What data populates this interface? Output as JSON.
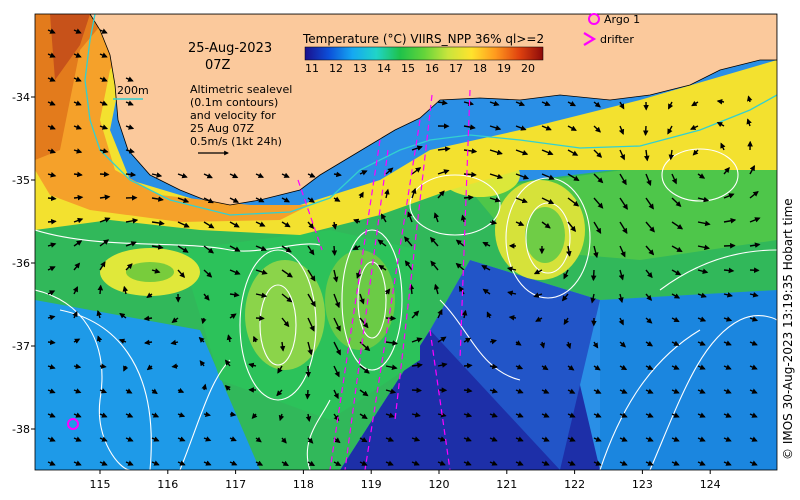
{
  "map": {
    "date": "25-Aug-2023",
    "time": "07Z",
    "depth_contour_label": "200m",
    "altimetry_note": [
      "Altimetric sealevel",
      "(0.1m contours)",
      "and velocity for",
      "25 Aug 07Z",
      "0.5m/s (1kt 24h)"
    ],
    "longitude_ticks": [
      "115",
      "116",
      "117",
      "118",
      "119",
      "120",
      "121",
      "122",
      "123",
      "124"
    ],
    "latitude_ticks": [
      "-34",
      "-35",
      "-36",
      "-37",
      "-38"
    ],
    "credit": "© IMOS 30-Aug-2023 13:19:35 Hobart time",
    "colors": {
      "land": "#fbc99c",
      "shelf_contour": "#33d0d0",
      "ssh_contour": "#ffffff",
      "marker": "#ff00ff"
    }
  },
  "colorbar": {
    "title": "Temperature (°C) VIIRS_NPP 36% ql>=2",
    "ticks": [
      "11",
      "12",
      "13",
      "14",
      "15",
      "16",
      "17",
      "18",
      "19",
      "20"
    ],
    "colors": [
      "#1a0f8c",
      "#0c4fd9",
      "#15a8f2",
      "#20d4c8",
      "#1fc24a",
      "#63d43a",
      "#c8e53c",
      "#ffe32d",
      "#ff9a1e",
      "#e0420f",
      "#8c0a0a"
    ]
  },
  "legend": {
    "argo_label": "Argo 1",
    "drifter_label": "drifter"
  }
}
